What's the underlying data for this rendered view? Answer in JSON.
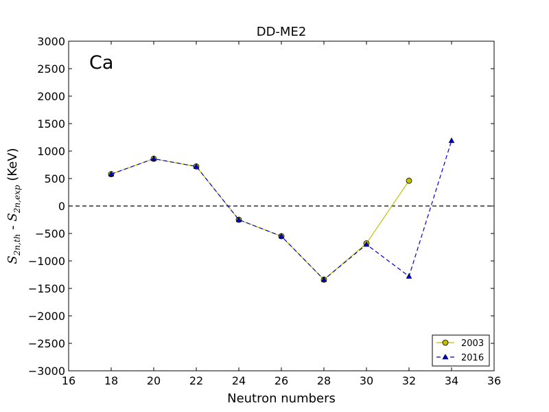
{
  "chart_data": {
    "type": "line",
    "title": "DD-ME2",
    "xlabel": "Neutron numbers",
    "ylabel": {
      "prefix_symbol": "S",
      "prefix_sub": "2n,th",
      "separator": " - ",
      "suffix_symbol": "S",
      "suffix_sub": "2n,exp",
      "unit": " (KeV)"
    },
    "annotation": "Ca",
    "xlim": [
      16,
      36
    ],
    "ylim": [
      -3000,
      3000
    ],
    "x_ticks": [
      16,
      18,
      20,
      22,
      24,
      26,
      28,
      30,
      32,
      34,
      36
    ],
    "y_ticks": [
      -3000,
      -2500,
      -2000,
      -1500,
      -1000,
      -500,
      0,
      500,
      1000,
      1500,
      2000,
      2500,
      3000
    ],
    "x_tick_labels": [
      "16",
      "18",
      "20",
      "22",
      "24",
      "26",
      "28",
      "30",
      "32",
      "34",
      "36"
    ],
    "y_tick_labels": [
      "−3000",
      "−2500",
      "−2000",
      "−1500",
      "−1000",
      "−500",
      "0",
      "500",
      "1000",
      "1500",
      "2000",
      "2500",
      "3000"
    ],
    "reference_line": {
      "y": 0,
      "style": "dashed",
      "color": "#000000"
    },
    "legend_position": "lower-right",
    "grid": false,
    "series": [
      {
        "name": "2003",
        "color": "#bfbf00",
        "marker": "circle",
        "line_style": "solid",
        "x": [
          18,
          20,
          22,
          24,
          26,
          28,
          30,
          32
        ],
        "y": [
          580,
          860,
          720,
          -250,
          -550,
          -1340,
          -680,
          460
        ]
      },
      {
        "name": "2016",
        "color": "#0000cc",
        "marker": "triangle",
        "line_style": "dashed",
        "x": [
          18,
          20,
          22,
          24,
          26,
          28,
          30,
          32,
          34
        ],
        "y": [
          580,
          860,
          720,
          -250,
          -550,
          -1340,
          -700,
          -1280,
          1190
        ]
      }
    ]
  }
}
